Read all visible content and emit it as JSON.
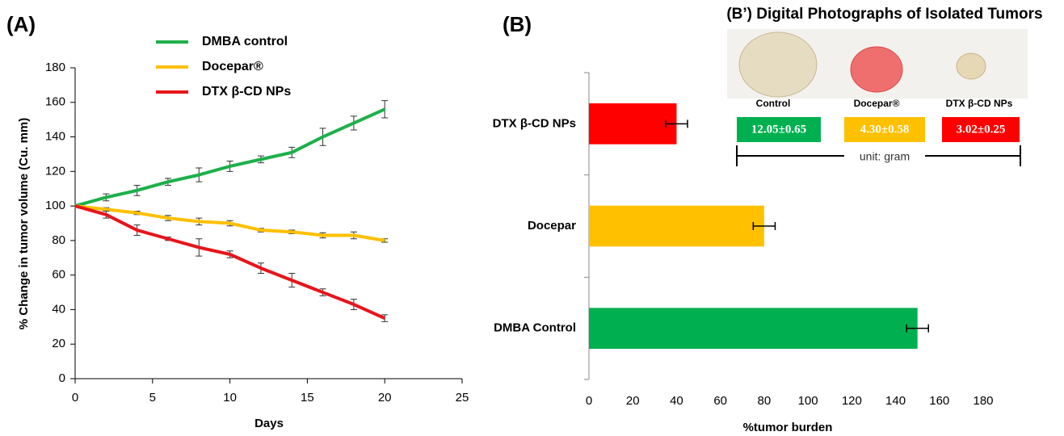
{
  "chart_data": [
    {
      "type": "line",
      "panel_label": "(A)",
      "x_label": "Days",
      "y_label": "% Change in tumor volume (Cu. mm)",
      "x": [
        0,
        2,
        4,
        6,
        8,
        10,
        12,
        14,
        16,
        18,
        20
      ],
      "series": [
        {
          "name": "DMBA control",
          "color": "#1db04a",
          "values": [
            100,
            105,
            109,
            114,
            118,
            123,
            127,
            131,
            140,
            148,
            156
          ],
          "errors": [
            0,
            2,
            3,
            2,
            4,
            3,
            2,
            3,
            5,
            4,
            5
          ]
        },
        {
          "name": "Docepar®",
          "color": "#ffc000",
          "values": [
            100,
            98,
            96,
            93,
            91,
            90,
            86,
            85,
            83,
            83,
            80
          ],
          "errors": [
            0,
            1,
            1,
            1.5,
            2,
            1.5,
            1,
            1,
            1.5,
            2,
            1
          ]
        },
        {
          "name": "DTX β-CD NPs",
          "color": "#e8141b",
          "values": [
            100,
            95,
            86,
            81,
            76,
            72,
            64,
            57,
            50,
            43,
            35
          ],
          "errors": [
            0,
            2,
            3,
            1,
            5,
            2,
            3,
            4,
            2,
            3,
            2
          ]
        }
      ],
      "xlim": [
        0,
        25
      ],
      "xticks": [
        0,
        5,
        10,
        15,
        20,
        25
      ],
      "ylim": [
        0,
        180
      ],
      "yticks": [
        0,
        20,
        40,
        60,
        80,
        100,
        120,
        140,
        160,
        180
      ],
      "legend": "top"
    },
    {
      "type": "bar",
      "orientation": "horizontal",
      "panel_label": "(B)",
      "x_label": "%tumor burden",
      "categories": [
        "DTX β-CD NPs",
        "Docepar",
        "DMBA Control"
      ],
      "values": [
        40,
        80,
        150
      ],
      "errors": [
        5,
        5,
        5
      ],
      "colors": [
        "#ff0000",
        "#ffc000",
        "#00b050"
      ],
      "xlim": [
        0,
        180
      ],
      "xticks": [
        0,
        20,
        40,
        60,
        80,
        100,
        120,
        140,
        160,
        180
      ]
    }
  ],
  "photo_panel": {
    "title": "(B’) Digital Photographs of Isolated Tumors",
    "items": [
      {
        "name": "Control",
        "weight": "12.05±0.65",
        "color": "#00b050"
      },
      {
        "name": "Docepar®",
        "weight": "4.30±0.58",
        "color": "#ffc000"
      },
      {
        "name": "DTX β-CD NPs",
        "weight": "3.02±0.25",
        "color": "#ff0000"
      }
    ],
    "unit": "unit: gram"
  }
}
